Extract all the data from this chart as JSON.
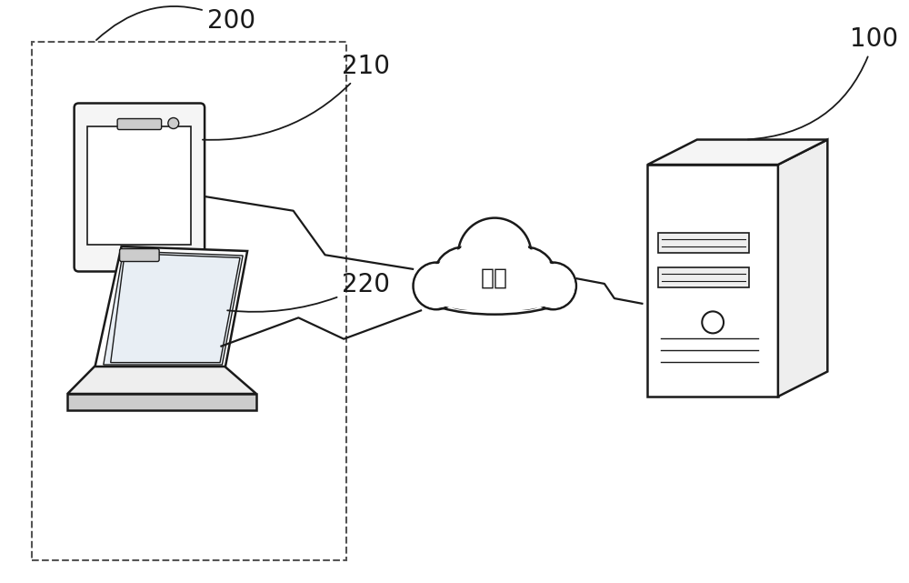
{
  "bg_color": "#ffffff",
  "label_200": "200",
  "label_210": "210",
  "label_220": "220",
  "label_100": "100",
  "cloud_label": "网络",
  "font_size_labels": 20,
  "font_size_cloud": 18,
  "line_color": "#1a1a1a",
  "fill_light": "#eeeeee",
  "fill_lighter": "#f5f5f5",
  "fill_white": "#ffffff",
  "fill_dark": "#333333",
  "fill_mid": "#cccccc",
  "fill_screen": "#e8eef4"
}
